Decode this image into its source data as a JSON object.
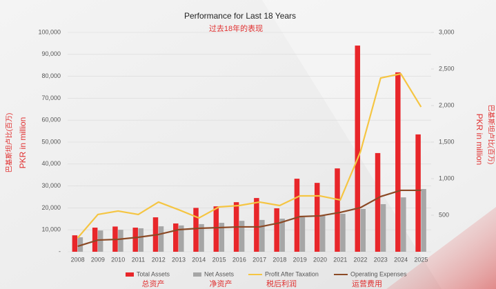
{
  "chart_data": {
    "type": "combo",
    "title": "Performance for Last 18 Years",
    "subtitle": "过去18年的表现",
    "ylabel": "PKR in million",
    "ylabel_zh": "巴基斯坦卢比(百万)",
    "y2label": "PKR in million",
    "y2label_zh": "巴基斯坦卢比(百万)",
    "categories": [
      "2008",
      "2009",
      "2010",
      "2011",
      "2012",
      "2013",
      "2014",
      "2015",
      "2016",
      "2017",
      "2018",
      "2019",
      "2020",
      "2021",
      "2022",
      "2023",
      "2024",
      "2025"
    ],
    "ylim": [
      0,
      100000
    ],
    "yticks": [
      {
        "value": 0,
        "label": "-"
      },
      {
        "value": 10000,
        "label": "10,000"
      },
      {
        "value": 20000,
        "label": "20,000"
      },
      {
        "value": 30000,
        "label": "30,000"
      },
      {
        "value": 40000,
        "label": "40,000"
      },
      {
        "value": 50000,
        "label": "50,000"
      },
      {
        "value": 60000,
        "label": "60,000"
      },
      {
        "value": 70000,
        "label": "70,000"
      },
      {
        "value": 80000,
        "label": "80,000"
      },
      {
        "value": 90000,
        "label": "90,000"
      },
      {
        "value": 100000,
        "label": "100,000"
      }
    ],
    "y2lim": [
      0,
      3000
    ],
    "y2ticks": [
      500,
      {
        "value": 1000,
        "label": "1,000"
      },
      {
        "value": 1500,
        "label": "1,500"
      },
      {
        "value": 2000,
        "label": "2,000"
      },
      {
        "value": 2500,
        "label": "2,500"
      },
      {
        "value": 3000,
        "label": "3,000"
      }
    ],
    "grid": true,
    "series": [
      {
        "name": "Total Assets",
        "label_zh": "总资产",
        "type": "bar",
        "color": "#e8262a",
        "values": [
          7500,
          11000,
          11500,
          11000,
          15700,
          12900,
          20000,
          20700,
          22600,
          24500,
          19800,
          33300,
          31400,
          38000,
          94000,
          45000,
          81800,
          53500
        ]
      },
      {
        "name": "Net Assets",
        "label_zh": "净资产",
        "type": "bar",
        "color": "#a6a6a6",
        "values": [
          6600,
          9700,
          10000,
          10700,
          11600,
          12000,
          12600,
          13200,
          14100,
          14500,
          15100,
          15700,
          16400,
          17300,
          19500,
          21700,
          24800,
          28600
        ]
      },
      {
        "name": "Profit After Taxation",
        "label_zh": "税后利润",
        "type": "line",
        "axis": "y2",
        "color": "#f5c542",
        "values": [
          190,
          510,
          557,
          510,
          680,
          575,
          462,
          613,
          632,
          680,
          632,
          764,
          764,
          708,
          1368,
          2377,
          2434,
          1981
        ]
      },
      {
        "name": "Operating Expenses",
        "label_zh": "运营费用",
        "type": "line",
        "axis": "y2",
        "color": "#8b4a26",
        "values": [
          75,
          160,
          170,
          198,
          236,
          302,
          321,
          330,
          340,
          340,
          396,
          481,
          491,
          538,
          604,
          755,
          840,
          840
        ]
      }
    ]
  }
}
